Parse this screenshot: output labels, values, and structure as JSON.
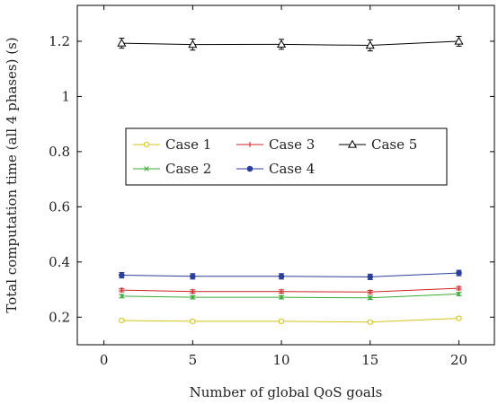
{
  "chart_data": {
    "type": "line",
    "title": "",
    "xlabel": "Number of global QoS goals",
    "ylabel": "Total computation time (all 4 phases) (s)",
    "xlim": [
      -1.5,
      22
    ],
    "ylim": [
      0.1,
      1.33
    ],
    "xticks": [
      0,
      5,
      10,
      15,
      20
    ],
    "yticks": [
      0.2,
      0.4,
      0.6,
      0.8,
      1,
      1.2
    ],
    "xtick_labels": [
      "0",
      "5",
      "10",
      "15",
      "20"
    ],
    "ytick_labels": [
      "0.2",
      "0.4",
      "0.6",
      "0.8",
      "1",
      "1.2"
    ],
    "grid": false,
    "legend_position": "center-left",
    "x": [
      1,
      5,
      10,
      15,
      20
    ],
    "series": [
      {
        "name": "Case 1",
        "color": "#d4c21a",
        "marker": "circle-open",
        "values": [
          0.188,
          0.185,
          0.185,
          0.182,
          0.196
        ],
        "error": [
          0.005,
          0.005,
          0.005,
          0.005,
          0.005
        ]
      },
      {
        "name": "Case 2",
        "color": "#3aaa35",
        "marker": "x",
        "values": [
          0.276,
          0.272,
          0.272,
          0.27,
          0.284
        ],
        "error": [
          0.006,
          0.006,
          0.006,
          0.006,
          0.006
        ]
      },
      {
        "name": "Case 3",
        "color": "#cc2222",
        "marker": "plus",
        "values": [
          0.298,
          0.293,
          0.293,
          0.291,
          0.305
        ],
        "error": [
          0.006,
          0.006,
          0.006,
          0.006,
          0.006
        ]
      },
      {
        "name": "Case 4",
        "color": "#2b3f99",
        "marker": "circle-filled",
        "values": [
          0.352,
          0.348,
          0.348,
          0.346,
          0.36
        ],
        "error": [
          0.01,
          0.01,
          0.01,
          0.01,
          0.01
        ]
      },
      {
        "name": "Case 5",
        "color": "#000000",
        "marker": "triangle-open",
        "values": [
          1.193,
          1.188,
          1.189,
          1.185,
          1.2
        ],
        "error": [
          0.018,
          0.02,
          0.018,
          0.02,
          0.018
        ]
      }
    ],
    "legend_rows": [
      [
        "Case 1",
        "Case 3",
        "Case 5"
      ],
      [
        "Case 2",
        "Case 4"
      ]
    ]
  }
}
